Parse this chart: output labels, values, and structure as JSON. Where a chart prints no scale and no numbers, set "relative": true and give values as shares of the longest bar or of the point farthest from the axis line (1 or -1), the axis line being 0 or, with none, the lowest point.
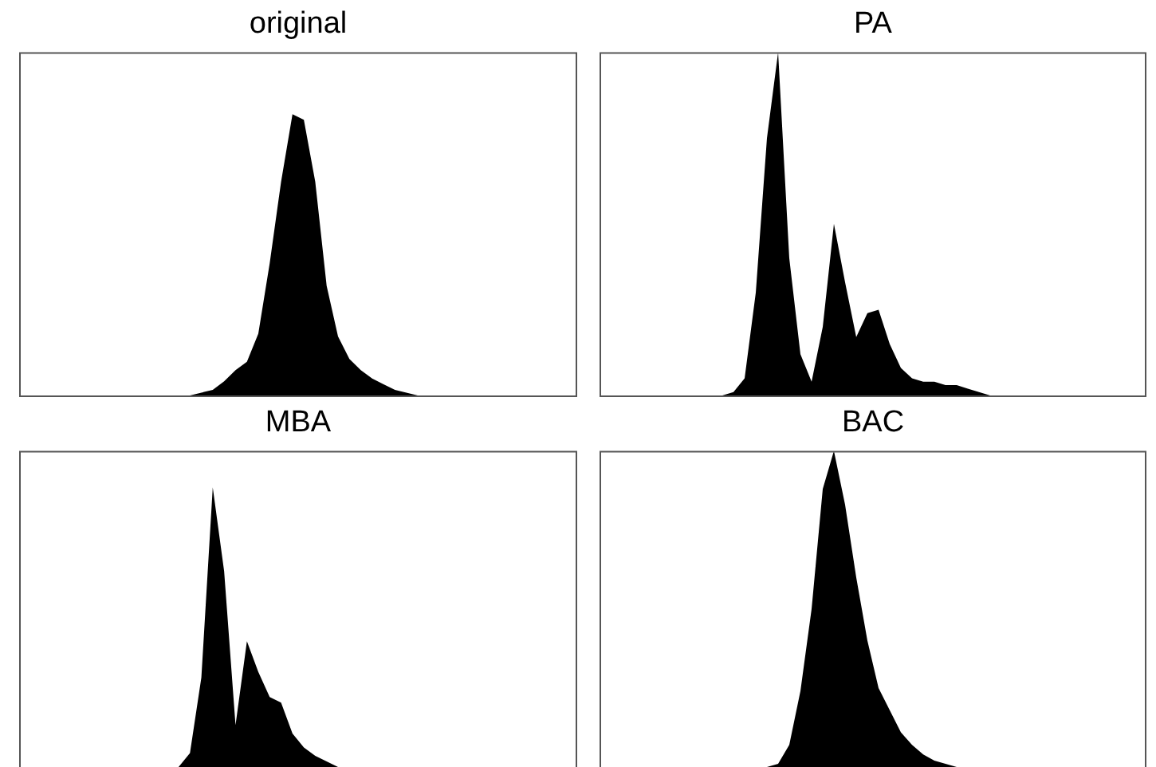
{
  "chart_data": [
    {
      "type": "area",
      "title": "original",
      "relative": true,
      "categories": [
        null,
        null,
        null,
        null,
        null,
        null,
        null,
        null,
        null,
        null,
        null,
        null,
        null,
        null,
        null,
        null,
        null,
        null,
        null,
        null,
        null,
        null,
        null,
        null,
        null,
        null,
        null,
        null,
        null,
        null,
        null,
        null,
        null,
        null,
        null,
        null,
        null,
        null,
        null,
        null,
        null,
        null,
        null,
        null,
        null,
        null,
        null,
        null,
        null,
        null
      ],
      "color": "#000000",
      "values": [
        0,
        0,
        0,
        0,
        0,
        0,
        0,
        0,
        0,
        0,
        0,
        0,
        0,
        0,
        0,
        0,
        0.01,
        0.02,
        0.05,
        0.09,
        0.12,
        0.22,
        0.47,
        0.76,
        1,
        0.98,
        0.76,
        0.39,
        0.21,
        0.13,
        0.09,
        0.06,
        0.04,
        0.02,
        0.01,
        0,
        0,
        0,
        0,
        0,
        0,
        0,
        0,
        0,
        0,
        0,
        0,
        0,
        0,
        0
      ]
    },
    {
      "type": "area",
      "title": "PA",
      "relative": true,
      "categories": [
        null,
        null,
        null,
        null,
        null,
        null,
        null,
        null,
        null,
        null,
        null,
        null,
        null,
        null,
        null,
        null,
        null,
        null,
        null,
        null,
        null,
        null,
        null,
        null,
        null,
        null,
        null,
        null,
        null,
        null,
        null,
        null,
        null,
        null,
        null,
        null,
        null,
        null,
        null,
        null,
        null,
        null,
        null,
        null,
        null,
        null,
        null,
        null,
        null,
        null
      ],
      "color": "#000000",
      "values": [
        0,
        0,
        0,
        0,
        0,
        0,
        0,
        0,
        0,
        0,
        0,
        0,
        0.01,
        0.05,
        0.3,
        0.75,
        1,
        0.4,
        0.12,
        0.04,
        0.2,
        0.5,
        0.33,
        0.17,
        0.24,
        0.25,
        0.15,
        0.08,
        0.05,
        0.04,
        0.04,
        0.03,
        0.03,
        0.02,
        0.01,
        0,
        0,
        0,
        0,
        0,
        0,
        0,
        0,
        0,
        0,
        0,
        0,
        0,
        0,
        0
      ]
    },
    {
      "type": "area",
      "title": "MBA",
      "relative": true,
      "categories": [
        null,
        null,
        null,
        null,
        null,
        null,
        null,
        null,
        null,
        null,
        null,
        null,
        null,
        null,
        null,
        null,
        null,
        null,
        null,
        null,
        null,
        null,
        null,
        null,
        null,
        null,
        null,
        null,
        null,
        null,
        null,
        null,
        null,
        null,
        null,
        null,
        null,
        null,
        null,
        null,
        null,
        null,
        null,
        null,
        null,
        null,
        null,
        null,
        null,
        null
      ],
      "color": "#000000",
      "values": [
        0,
        0,
        0,
        0,
        0,
        0,
        0,
        0,
        0,
        0,
        0,
        0,
        0,
        0,
        0,
        0.05,
        0.32,
        1,
        0.7,
        0.15,
        0.45,
        0.34,
        0.25,
        0.23,
        0.12,
        0.07,
        0.04,
        0.02,
        0,
        0,
        0,
        0,
        0,
        0,
        0,
        0,
        0,
        0,
        0,
        0,
        0,
        0,
        0,
        0,
        0,
        0,
        0,
        0,
        0,
        0
      ]
    },
    {
      "type": "area",
      "title": "BAC",
      "relative": true,
      "categories": [
        null,
        null,
        null,
        null,
        null,
        null,
        null,
        null,
        null,
        null,
        null,
        null,
        null,
        null,
        null,
        null,
        null,
        null,
        null,
        null,
        null,
        null,
        null,
        null,
        null,
        null,
        null,
        null,
        null,
        null,
        null,
        null,
        null,
        null,
        null,
        null,
        null,
        null,
        null,
        null,
        null,
        null,
        null,
        null,
        null,
        null,
        null,
        null,
        null,
        null
      ],
      "color": "#000000",
      "values": [
        0,
        0,
        0,
        0,
        0,
        0,
        0,
        0,
        0,
        0,
        0,
        0,
        0,
        0,
        0,
        0,
        0.01,
        0.07,
        0.24,
        0.5,
        0.88,
        1,
        0.83,
        0.6,
        0.4,
        0.25,
        0.18,
        0.11,
        0.07,
        0.04,
        0.02,
        0.01,
        0,
        0,
        0,
        0,
        0,
        0,
        0,
        0,
        0,
        0,
        0,
        0,
        0,
        0,
        0,
        0,
        0,
        0
      ]
    }
  ]
}
